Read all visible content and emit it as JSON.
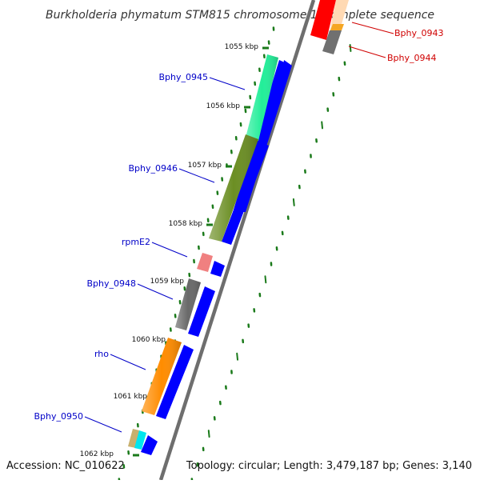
{
  "title": "Burkholderia phymatum STM815 chromosome 1, complete sequence",
  "accession": "Accession: NC_010622",
  "summary": "Topology: circular; Length: 3,479,187 bp; Genes: 3,140",
  "colors": {
    "backbone": "#8a8a8a",
    "tick": "#1a7a1a",
    "label_left": "#0000c8",
    "label_right": "#d00000",
    "strand_arrow": "#0000ff"
  },
  "scale_ticks": [
    "1055 kbp",
    "1056 kbp",
    "1057 kbp",
    "1058 kbp",
    "1059 kbp",
    "1060 kbp",
    "1061 kbp",
    "1062 kbp"
  ],
  "genes": [
    {
      "name": "Bphy_0943",
      "color": "#ff0000",
      "side": "right"
    },
    {
      "name": "Bphy_0944",
      "color": "#707070",
      "side": "right"
    },
    {
      "name": "Bphy_0945",
      "color": "#22ee99",
      "side": "left"
    },
    {
      "name": "Bphy_0946",
      "color": "#6b8e23",
      "side": "left"
    },
    {
      "name": "rpmE2",
      "color": "#f08080",
      "side": "left"
    },
    {
      "name": "Bphy_0948",
      "color": "#696969",
      "side": "left"
    },
    {
      "name": "rho",
      "color": "#ff8c00",
      "side": "left"
    },
    {
      "name": "Bphy_0950",
      "color": "#00e5ee",
      "side": "left"
    }
  ]
}
